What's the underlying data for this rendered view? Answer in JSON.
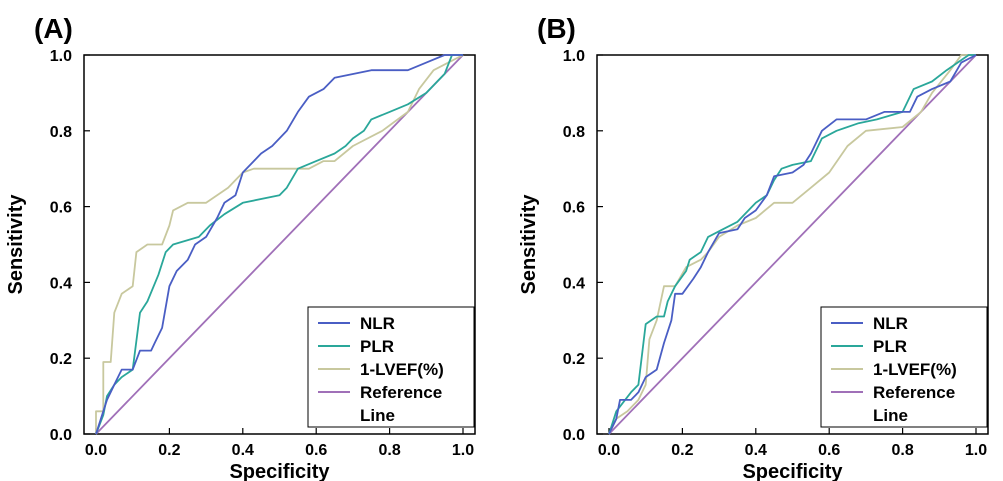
{
  "chart_data": [
    {
      "panel_label": "(A)",
      "type": "line",
      "xlabel": "Specificity",
      "ylabel": "Sensitivity",
      "xlim": [
        0,
        1
      ],
      "ylim": [
        0,
        1
      ],
      "xticks": [
        "0.0",
        "0.2",
        "0.4",
        "0.6",
        "0.8",
        "1.0"
      ],
      "yticks": [
        "0.0",
        "0.2",
        "0.4",
        "0.6",
        "0.8",
        "1.0"
      ],
      "legend": {
        "position": "bottom-right",
        "entries": [
          "NLR",
          "PLR",
          "1-LVEF(%)",
          "Reference",
          "Line"
        ]
      },
      "series": [
        {
          "name": "NLR",
          "color": "#4a5ec4",
          "points": [
            [
              0,
              0
            ],
            [
              0.02,
              0.06
            ],
            [
              0.03,
              0.09
            ],
            [
              0.05,
              0.13
            ],
            [
              0.06,
              0.15
            ],
            [
              0.07,
              0.17
            ],
            [
              0.1,
              0.17
            ],
            [
              0.12,
              0.22
            ],
            [
              0.15,
              0.22
            ],
            [
              0.16,
              0.24
            ],
            [
              0.18,
              0.28
            ],
            [
              0.2,
              0.39
            ],
            [
              0.22,
              0.43
            ],
            [
              0.25,
              0.46
            ],
            [
              0.27,
              0.5
            ],
            [
              0.3,
              0.52
            ],
            [
              0.33,
              0.57
            ],
            [
              0.35,
              0.61
            ],
            [
              0.38,
              0.63
            ],
            [
              0.4,
              0.69
            ],
            [
              0.43,
              0.72
            ],
            [
              0.45,
              0.74
            ],
            [
              0.48,
              0.76
            ],
            [
              0.52,
              0.8
            ],
            [
              0.55,
              0.85
            ],
            [
              0.58,
              0.89
            ],
            [
              0.62,
              0.91
            ],
            [
              0.65,
              0.94
            ],
            [
              0.75,
              0.96
            ],
            [
              0.85,
              0.96
            ],
            [
              0.9,
              0.98
            ],
            [
              0.95,
              1
            ],
            [
              1,
              1
            ]
          ]
        },
        {
          "name": "PLR",
          "color": "#2aa79a",
          "points": [
            [
              0,
              0
            ],
            [
              0.02,
              0.05
            ],
            [
              0.03,
              0.1
            ],
            [
              0.05,
              0.13
            ],
            [
              0.07,
              0.15
            ],
            [
              0.1,
              0.17
            ],
            [
              0.12,
              0.32
            ],
            [
              0.14,
              0.35
            ],
            [
              0.17,
              0.42
            ],
            [
              0.19,
              0.48
            ],
            [
              0.21,
              0.5
            ],
            [
              0.28,
              0.52
            ],
            [
              0.31,
              0.55
            ],
            [
              0.35,
              0.58
            ],
            [
              0.4,
              0.61
            ],
            [
              0.5,
              0.63
            ],
            [
              0.52,
              0.65
            ],
            [
              0.55,
              0.7
            ],
            [
              0.6,
              0.72
            ],
            [
              0.65,
              0.74
            ],
            [
              0.68,
              0.76
            ],
            [
              0.7,
              0.78
            ],
            [
              0.73,
              0.8
            ],
            [
              0.75,
              0.83
            ],
            [
              0.8,
              0.85
            ],
            [
              0.85,
              0.87
            ],
            [
              0.9,
              0.9
            ],
            [
              0.95,
              0.95
            ],
            [
              0.97,
              1
            ],
            [
              1,
              1
            ]
          ]
        },
        {
          "name": "1-LVEF(%)",
          "color": "#c8c89e",
          "points": [
            [
              0,
              0
            ],
            [
              0,
              0.06
            ],
            [
              0.02,
              0.06
            ],
            [
              0.02,
              0.19
            ],
            [
              0.04,
              0.19
            ],
            [
              0.05,
              0.32
            ],
            [
              0.07,
              0.37
            ],
            [
              0.1,
              0.39
            ],
            [
              0.11,
              0.48
            ],
            [
              0.14,
              0.5
            ],
            [
              0.18,
              0.5
            ],
            [
              0.2,
              0.55
            ],
            [
              0.21,
              0.59
            ],
            [
              0.25,
              0.61
            ],
            [
              0.3,
              0.61
            ],
            [
              0.33,
              0.63
            ],
            [
              0.36,
              0.65
            ],
            [
              0.4,
              0.69
            ],
            [
              0.43,
              0.7
            ],
            [
              0.58,
              0.7
            ],
            [
              0.62,
              0.72
            ],
            [
              0.65,
              0.72
            ],
            [
              0.7,
              0.76
            ],
            [
              0.78,
              0.8
            ],
            [
              0.85,
              0.85
            ],
            [
              0.88,
              0.91
            ],
            [
              0.92,
              0.96
            ],
            [
              0.96,
              0.98
            ],
            [
              1,
              1
            ]
          ]
        },
        {
          "name": "Reference Line",
          "color": "#a070b8",
          "points": [
            [
              0,
              0
            ],
            [
              1,
              1
            ]
          ]
        }
      ]
    },
    {
      "panel_label": "(B)",
      "type": "line",
      "xlabel": "Specificity",
      "ylabel": "Sensitivity",
      "xlim": [
        0,
        1
      ],
      "ylim": [
        0,
        1
      ],
      "xticks": [
        "0.0",
        "0.2",
        "0.4",
        "0.6",
        "0.8",
        "1.0"
      ],
      "yticks": [
        "0.0",
        "0.2",
        "0.4",
        "0.6",
        "0.8",
        "1.0"
      ],
      "legend": {
        "position": "bottom-right",
        "entries": [
          "NLR",
          "PLR",
          "1-LVEF(%)",
          "Reference",
          "Line"
        ]
      },
      "series": [
        {
          "name": "NLR",
          "color": "#4a5ec4",
          "points": [
            [
              0,
              0
            ],
            [
              0.02,
              0.04
            ],
            [
              0.03,
              0.09
            ],
            [
              0.06,
              0.09
            ],
            [
              0.08,
              0.11
            ],
            [
              0.1,
              0.15
            ],
            [
              0.13,
              0.17
            ],
            [
              0.15,
              0.24
            ],
            [
              0.17,
              0.3
            ],
            [
              0.18,
              0.37
            ],
            [
              0.2,
              0.37
            ],
            [
              0.23,
              0.41
            ],
            [
              0.25,
              0.44
            ],
            [
              0.27,
              0.48
            ],
            [
              0.3,
              0.53
            ],
            [
              0.35,
              0.54
            ],
            [
              0.37,
              0.57
            ],
            [
              0.4,
              0.59
            ],
            [
              0.43,
              0.63
            ],
            [
              0.45,
              0.68
            ],
            [
              0.5,
              0.69
            ],
            [
              0.53,
              0.71
            ],
            [
              0.55,
              0.74
            ],
            [
              0.58,
              0.8
            ],
            [
              0.62,
              0.83
            ],
            [
              0.7,
              0.83
            ],
            [
              0.75,
              0.85
            ],
            [
              0.82,
              0.85
            ],
            [
              0.84,
              0.89
            ],
            [
              0.88,
              0.91
            ],
            [
              0.93,
              0.93
            ],
            [
              0.96,
              0.98
            ],
            [
              1,
              1
            ]
          ]
        },
        {
          "name": "PLR",
          "color": "#2aa79a",
          "points": [
            [
              0,
              0
            ],
            [
              0.02,
              0.06
            ],
            [
              0.06,
              0.11
            ],
            [
              0.08,
              0.13
            ],
            [
              0.1,
              0.29
            ],
            [
              0.13,
              0.31
            ],
            [
              0.15,
              0.31
            ],
            [
              0.16,
              0.35
            ],
            [
              0.18,
              0.39
            ],
            [
              0.21,
              0.43
            ],
            [
              0.22,
              0.46
            ],
            [
              0.25,
              0.48
            ],
            [
              0.27,
              0.52
            ],
            [
              0.31,
              0.54
            ],
            [
              0.35,
              0.56
            ],
            [
              0.4,
              0.61
            ],
            [
              0.43,
              0.63
            ],
            [
              0.45,
              0.67
            ],
            [
              0.47,
              0.7
            ],
            [
              0.5,
              0.71
            ],
            [
              0.55,
              0.72
            ],
            [
              0.58,
              0.78
            ],
            [
              0.62,
              0.8
            ],
            [
              0.68,
              0.82
            ],
            [
              0.73,
              0.83
            ],
            [
              0.8,
              0.85
            ],
            [
              0.83,
              0.91
            ],
            [
              0.88,
              0.93
            ],
            [
              0.92,
              0.96
            ],
            [
              0.95,
              0.98
            ],
            [
              0.98,
              1
            ],
            [
              1,
              1
            ]
          ]
        },
        {
          "name": "1-LVEF(%)",
          "color": "#c8c89e",
          "points": [
            [
              0,
              0
            ],
            [
              0.02,
              0.04
            ],
            [
              0.05,
              0.06
            ],
            [
              0.08,
              0.09
            ],
            [
              0.1,
              0.13
            ],
            [
              0.11,
              0.25
            ],
            [
              0.13,
              0.3
            ],
            [
              0.15,
              0.39
            ],
            [
              0.18,
              0.39
            ],
            [
              0.21,
              0.44
            ],
            [
              0.25,
              0.46
            ],
            [
              0.27,
              0.48
            ],
            [
              0.3,
              0.52
            ],
            [
              0.35,
              0.55
            ],
            [
              0.4,
              0.57
            ],
            [
              0.45,
              0.61
            ],
            [
              0.5,
              0.61
            ],
            [
              0.55,
              0.65
            ],
            [
              0.6,
              0.69
            ],
            [
              0.65,
              0.76
            ],
            [
              0.7,
              0.8
            ],
            [
              0.8,
              0.81
            ],
            [
              0.85,
              0.85
            ],
            [
              0.88,
              0.9
            ],
            [
              0.93,
              0.96
            ],
            [
              0.96,
              1
            ],
            [
              1,
              1
            ]
          ]
        },
        {
          "name": "Reference Line",
          "color": "#a070b8",
          "points": [
            [
              0,
              0
            ],
            [
              1,
              1
            ]
          ]
        }
      ]
    }
  ]
}
